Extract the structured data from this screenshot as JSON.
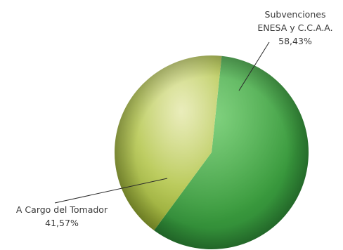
{
  "chart_data": {
    "type": "pie",
    "style": "3d-sphere",
    "slices": [
      {
        "label_lines": [
          "Subvenciones",
          "ENESA y C.C.A.A."
        ],
        "value": 58.43,
        "value_label": "58,43%",
        "color": "#3f9c3f"
      },
      {
        "label_lines": [
          "A Cargo del Tomador"
        ],
        "value": 41.57,
        "value_label": "41,57%",
        "color": "#a9be3c"
      }
    ]
  }
}
